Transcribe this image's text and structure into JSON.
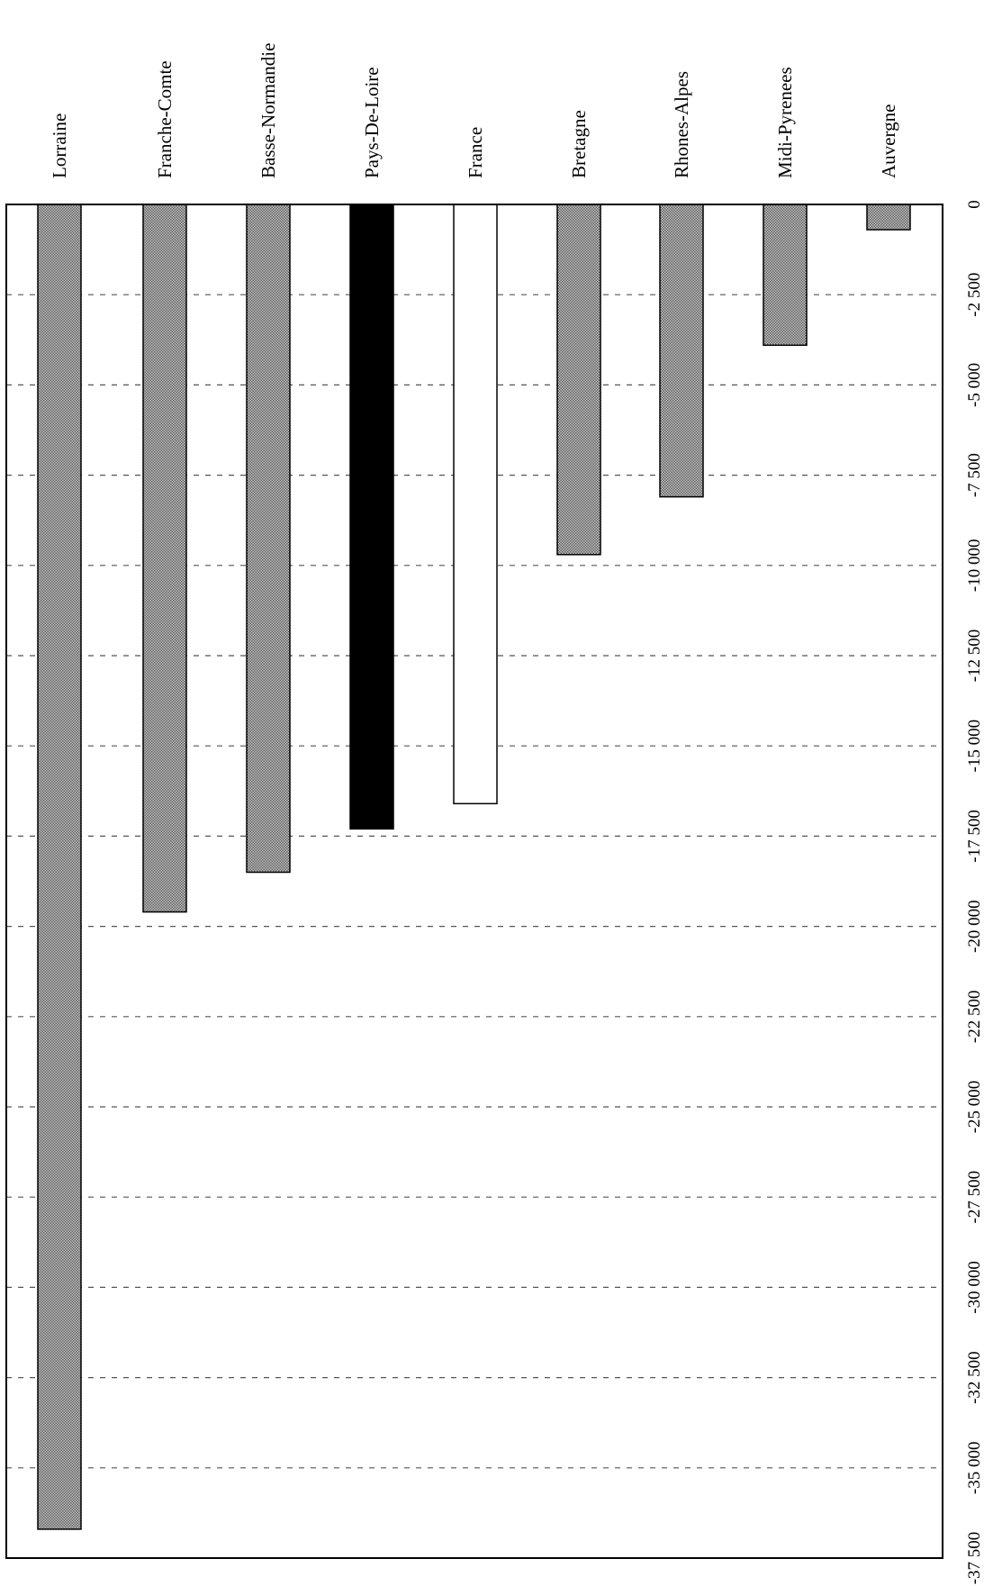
{
  "chart_data": {
    "type": "bar",
    "orientation": "horizontal",
    "categories": [
      "Lorraine",
      "Franche-Comte",
      "Basse-Normandie",
      "Pays-De-Loire",
      "France",
      "Bretagne",
      "Rhones-Alpes",
      "Midi-Pyrenees",
      "Auvergne"
    ],
    "values": [
      -36700,
      -19600,
      -18500,
      -17300,
      -16600,
      -9700,
      -8100,
      -3900,
      -700
    ],
    "series": [
      {
        "values": [
          -36700,
          -19600,
          -18500,
          -17300,
          -16600,
          -9700,
          -8100,
          -3900,
          -700
        ]
      }
    ],
    "bar_fills": [
      "pattern",
      "pattern",
      "pattern",
      "solid-black",
      "white",
      "pattern",
      "pattern",
      "pattern",
      "pattern"
    ],
    "value_axis": {
      "ticks": [
        0,
        -2500,
        -5000,
        -7500,
        -10000,
        -12500,
        -15000,
        -17500,
        -20000,
        -22500,
        -25000,
        -27500,
        -30000,
        -32500,
        -35000,
        -37500
      ],
      "tick_labels": [
        "0",
        "-2 500",
        "-5 000",
        "-7 500",
        "-10 000",
        "-12 500",
        "-15 000",
        "-17 500",
        "-20 000",
        "-22 500",
        "-25 000",
        "-27 500",
        "-30 000",
        "-32 500",
        "-35 000",
        "-37 500"
      ],
      "range": [
        0,
        -37500
      ]
    },
    "grid": "dashed",
    "rotation": "page rotated 90 degrees clockwise",
    "title": "",
    "xlabel": "",
    "ylabel": ""
  },
  "colors": {
    "bar_pattern_dark": "#5a5a5a",
    "bar_pattern_light": "#c8c8c8",
    "highlight_bar": "#000000",
    "france_bar": "#ffffff",
    "grid": "#555555",
    "frame": "#000000"
  }
}
